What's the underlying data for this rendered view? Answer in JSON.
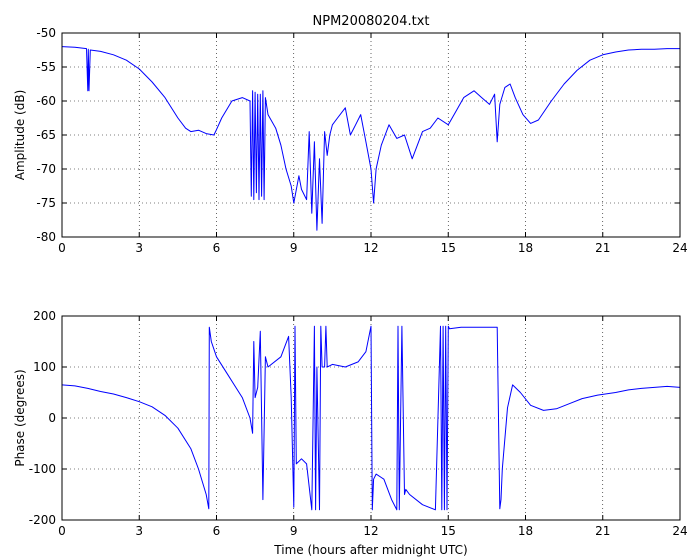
{
  "chart_data": [
    {
      "type": "line",
      "title": "NPM20080204.txt",
      "xlabel": "",
      "ylabel": "Amplitude (dB)",
      "xlim": [
        0,
        24
      ],
      "ylim": [
        -80,
        -50
      ],
      "xticks": [
        "0",
        "3",
        "6",
        "9",
        "12",
        "15",
        "18",
        "21",
        "24"
      ],
      "yticks": [
        "-50",
        "-55",
        "-60",
        "-65",
        "-70",
        "-75",
        "-80"
      ],
      "grid": true,
      "series_color": "#0000ff",
      "series": [
        {
          "x": [
            0,
            0.5,
            0.95,
            1.0,
            1.02,
            1.05,
            1.1,
            1.5,
            2,
            2.5,
            3,
            3.5,
            4,
            4.5,
            4.8,
            5.0,
            5.3,
            5.6,
            5.9,
            6.0,
            6.2,
            6.6,
            7.0,
            7.3,
            7.35,
            7.4,
            7.45,
            7.5,
            7.55,
            7.6,
            7.65,
            7.7,
            7.75,
            7.8,
            7.85,
            7.9,
            8.0,
            8.3,
            8.5,
            8.7,
            8.9,
            9.0,
            9.2,
            9.3,
            9.5,
            9.6,
            9.7,
            9.8,
            9.9,
            10.0,
            10.1,
            10.2,
            10.3,
            10.4,
            10.5,
            10.7,
            11.0,
            11.2,
            11.4,
            11.6,
            11.8,
            12.0,
            12.1,
            12.2,
            12.4,
            12.7,
            13.0,
            13.3,
            13.6,
            14.0,
            14.3,
            14.6,
            15.0,
            15.3,
            15.6,
            16.0,
            16.3,
            16.6,
            16.8,
            16.9,
            17.0,
            17.2,
            17.4,
            17.6,
            17.9,
            18.2,
            18.5,
            19.0,
            19.5,
            20.0,
            20.5,
            21.0,
            21.5,
            22.0,
            22.5,
            23.0,
            23.5,
            24.0
          ],
          "y": [
            -52.0,
            -52.1,
            -52.3,
            -58.5,
            -52.4,
            -58.5,
            -52.5,
            -52.7,
            -53.2,
            -54.0,
            -55.3,
            -57.2,
            -59.5,
            -62.5,
            -64.0,
            -64.5,
            -64.3,
            -64.8,
            -65.0,
            -64.2,
            -62.5,
            -60.0,
            -59.5,
            -60.0,
            -74.0,
            -58.5,
            -74.5,
            -58.7,
            -73.5,
            -59.0,
            -74.5,
            -59.0,
            -74.0,
            -58.5,
            -74.5,
            -59.5,
            -62.0,
            -64.0,
            -66.5,
            -70.0,
            -72.5,
            -75.0,
            -71.0,
            -73.0,
            -74.5,
            -64.5,
            -76.5,
            -66.0,
            -79.0,
            -68.5,
            -78.0,
            -64.5,
            -68.0,
            -65.0,
            -63.5,
            -62.5,
            -61.0,
            -65.0,
            -63.5,
            -62.0,
            -66.0,
            -70.0,
            -75.0,
            -70.0,
            -66.5,
            -63.5,
            -65.5,
            -65.0,
            -68.5,
            -64.5,
            -64.0,
            -62.5,
            -63.5,
            -61.5,
            -59.5,
            -58.5,
            -59.5,
            -60.5,
            -59.0,
            -66.0,
            -60.5,
            -58.0,
            -57.5,
            -59.5,
            -62.0,
            -63.3,
            -62.8,
            -60.0,
            -57.5,
            -55.5,
            -54.0,
            -53.2,
            -52.8,
            -52.5,
            -52.4,
            -52.4,
            -52.3,
            -52.3
          ]
        }
      ]
    },
    {
      "type": "line",
      "title": "",
      "xlabel": "Time (hours after midnight UTC)",
      "ylabel": "Phase (degrees)",
      "xlim": [
        0,
        24
      ],
      "ylim": [
        -200,
        200
      ],
      "xticks": [
        "0",
        "3",
        "6",
        "9",
        "12",
        "15",
        "18",
        "21",
        "24"
      ],
      "yticks": [
        "200",
        "100",
        "0",
        "-100",
        "-200"
      ],
      "grid": true,
      "series_color": "#0000ff",
      "series": [
        {
          "x": [
            0,
            0.5,
            1,
            1.5,
            2,
            2.5,
            3,
            3.5,
            4,
            4.5,
            5,
            5.3,
            5.6,
            5.7,
            5.72,
            5.8,
            6.0,
            6.5,
            7.0,
            7.3,
            7.4,
            7.45,
            7.5,
            7.6,
            7.7,
            7.8,
            7.9,
            8.0,
            8.5,
            8.8,
            8.9,
            9.0,
            9.05,
            9.1,
            9.3,
            9.5,
            9.7,
            9.8,
            9.85,
            9.9,
            10.0,
            10.05,
            10.1,
            10.2,
            10.25,
            10.3,
            10.5,
            11.0,
            11.5,
            11.8,
            12.0,
            12.05,
            12.1,
            12.2,
            12.5,
            12.8,
            13.0,
            13.05,
            13.1,
            13.2,
            13.3,
            13.35,
            13.5,
            14.0,
            14.5,
            14.7,
            14.75,
            14.8,
            14.85,
            14.9,
            14.95,
            15.0,
            15.05,
            15.5,
            16.0,
            16.5,
            16.9,
            17.0,
            17.05,
            17.1,
            17.3,
            17.5,
            17.8,
            18.2,
            18.7,
            19.2,
            19.7,
            20.2,
            20.8,
            21.5,
            22.0,
            22.5,
            23.0,
            23.5,
            24.0
          ],
          "y": [
            65,
            63,
            58,
            52,
            47,
            40,
            32,
            22,
            5,
            -20,
            -60,
            -100,
            -150,
            -178,
            178,
            150,
            120,
            80,
            40,
            0,
            -30,
            150,
            40,
            60,
            170,
            -160,
            120,
            100,
            120,
            160,
            40,
            -175,
            180,
            -90,
            -80,
            -90,
            -180,
            180,
            -180,
            100,
            -180,
            180,
            100,
            100,
            180,
            100,
            105,
            100,
            110,
            130,
            180,
            -180,
            -120,
            -110,
            -120,
            -160,
            -180,
            180,
            -180,
            180,
            -150,
            -140,
            -150,
            -170,
            -180,
            180,
            -180,
            180,
            -180,
            180,
            -180,
            180,
            175,
            178,
            178,
            178,
            178,
            -178,
            -160,
            -100,
            20,
            65,
            50,
            25,
            15,
            18,
            28,
            38,
            45,
            50,
            55,
            58,
            60,
            62,
            60
          ]
        }
      ]
    }
  ]
}
